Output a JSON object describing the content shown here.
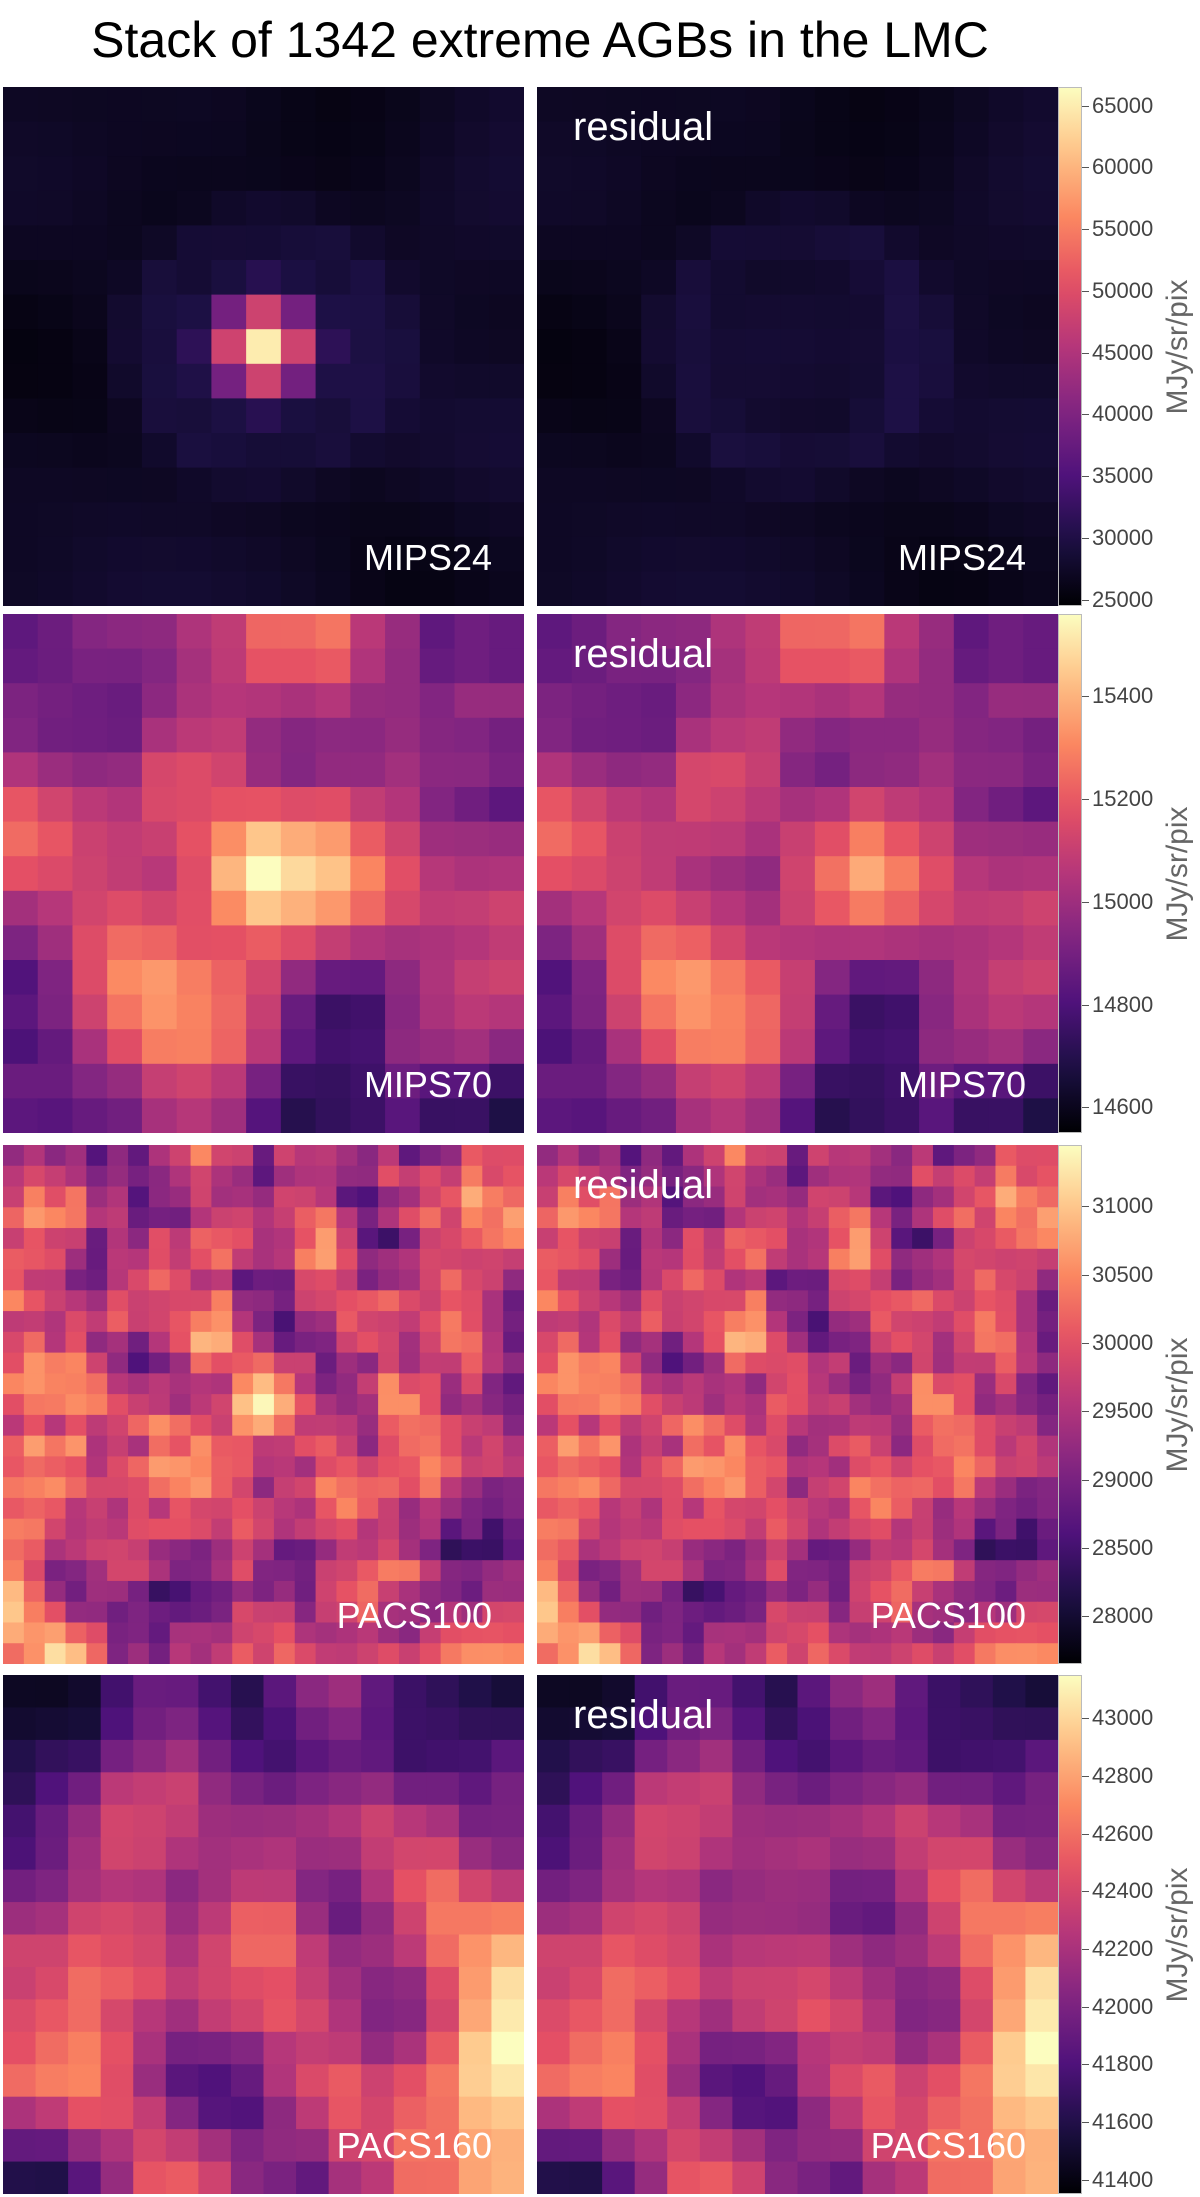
{
  "title": "Stack of 1342 extreme AGBs in the LMC",
  "colormap": {
    "name": "magma",
    "stops": [
      "#000004",
      "#1c1044",
      "#4f127b",
      "#812581",
      "#b5367a",
      "#e55064",
      "#fb8761",
      "#fec287",
      "#fcfdbf"
    ]
  },
  "rows": [
    {
      "band": "MIPS24",
      "residual_label": "residual",
      "unit": "MJy/sr/pix",
      "colorbar": {
        "vmin": 24500,
        "vmax": 66500,
        "ticks": [
          "25000",
          "30000",
          "35000",
          "40000",
          "45000",
          "50000",
          "55000",
          "60000",
          "65000"
        ]
      },
      "grid": 15,
      "source": {
        "peak": 65000,
        "sigma": 0.9,
        "ring_amp": 2000,
        "ring_radius": 3.5
      },
      "background": {
        "base": 27500,
        "noise": 2000,
        "smooth": 3,
        "seed": 11
      }
    },
    {
      "band": "MIPS70",
      "residual_label": "residual",
      "unit": "MJy/sr/pix",
      "colorbar": {
        "vmin": 14550,
        "vmax": 15560,
        "ticks": [
          "14600",
          "14800",
          "15000",
          "15200",
          "15400"
        ]
      },
      "grid": 15,
      "source": {
        "peak": 15560,
        "sigma": 1.3,
        "ring_amp": 0,
        "ring_radius": 0
      },
      "background": {
        "base": 15060,
        "noise": 380,
        "smooth": 2,
        "seed": 23
      }
    },
    {
      "band": "PACS100",
      "residual_label": "residual",
      "unit": "MJy/sr/pix",
      "colorbar": {
        "vmin": 27650,
        "vmax": 31450,
        "ticks": [
          "28000",
          "28500",
          "29000",
          "29500",
          "30000",
          "30500",
          "31000"
        ]
      },
      "grid": 25,
      "source": {
        "peak": 31400,
        "sigma": 1.1,
        "ring_amp": 0,
        "ring_radius": 0
      },
      "background": {
        "base": 29700,
        "noise": 1500,
        "smooth": 1,
        "seed": 37
      }
    },
    {
      "band": "PACS160",
      "residual_label": "residual",
      "unit": "MJy/sr/pix",
      "colorbar": {
        "vmin": 41350,
        "vmax": 43150,
        "ticks": [
          "41400",
          "41600",
          "41800",
          "42000",
          "42200",
          "42400",
          "42600",
          "42800",
          "43000"
        ]
      },
      "grid": 16,
      "source": {
        "peak": 42650,
        "sigma": 1.0,
        "ring_amp": 0,
        "ring_radius": 0
      },
      "background": {
        "base": 42250,
        "noise": 900,
        "smooth": 2,
        "seed": 53
      }
    }
  ]
}
